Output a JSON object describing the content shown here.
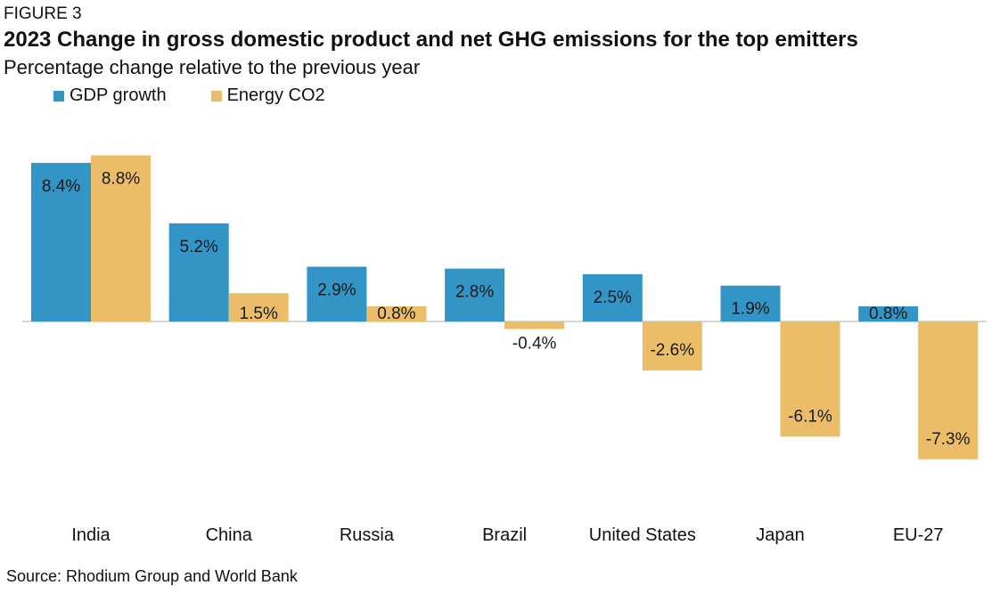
{
  "figure_label": "FIGURE 3",
  "source": "Source: Rhodium Group and World Bank",
  "colors": {
    "gdp": "#3394c6",
    "co2": "#ebbd68",
    "axis": "#c8c8c8"
  },
  "chart_data": {
    "type": "bar",
    "title": "2023 Change in gross domestic product and net GHG emissions for the top emitters",
    "subtitle": "Percentage change relative to the previous year",
    "categories": [
      "India",
      "China",
      "Russia",
      "Brazil",
      "United States",
      "Japan",
      "EU-27"
    ],
    "series": [
      {
        "name": "GDP growth",
        "values": [
          8.4,
          5.2,
          2.9,
          2.8,
          2.5,
          1.9,
          0.8
        ],
        "labels": [
          "8.4%",
          "5.2%",
          "2.9%",
          "2.8%",
          "2.5%",
          "1.9%",
          "0.8%"
        ]
      },
      {
        "name": "Energy CO2",
        "values": [
          8.8,
          1.5,
          0.8,
          -0.4,
          -2.6,
          -6.1,
          -7.3
        ],
        "labels": [
          "8.8%",
          "1.5%",
          "0.8%",
          "-0.4%",
          "-2.6%",
          "-6.1%",
          "-7.3%"
        ]
      }
    ],
    "xlabel": "",
    "ylabel": "",
    "ylim": [
      -9,
      10
    ],
    "grid": false,
    "legend": "top-left"
  }
}
